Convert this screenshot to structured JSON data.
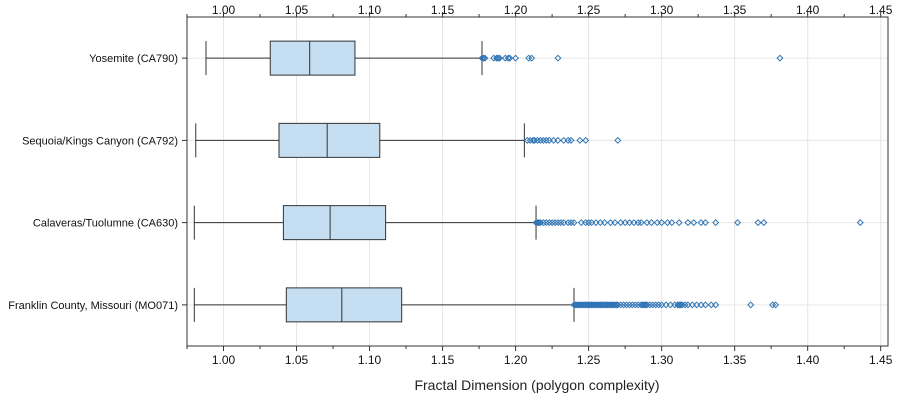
{
  "chart_data": {
    "type": "boxplot",
    "title": "",
    "xlabel": "Fractal Dimension (polygon complexity)",
    "ylabel": "",
    "xlim": [
      0.975,
      1.455
    ],
    "xticks": [
      1.0,
      1.05,
      1.1,
      1.15,
      1.2,
      1.25,
      1.3,
      1.35,
      1.4,
      1.45
    ],
    "xtick_labels": [
      "1.00",
      "1.05",
      "1.10",
      "1.15",
      "1.20",
      "1.25",
      "1.30",
      "1.35",
      "1.40",
      "1.45"
    ],
    "grid": true,
    "colors": {
      "box_fill": "#c6def1",
      "box_stroke": "#333333",
      "outlier": "#2f74b5",
      "grid": "#e6e6e6"
    },
    "categories": [
      {
        "label": "Yosemite (CA790)",
        "whisker_low": 0.988,
        "q1": 1.032,
        "median": 1.059,
        "q3": 1.09,
        "whisker_high": 1.177,
        "outliers": [
          1.177,
          1.178,
          1.179,
          1.185,
          1.187,
          1.188,
          1.189,
          1.193,
          1.195,
          1.196,
          1.2,
          1.209,
          1.211,
          1.229,
          1.381
        ]
      },
      {
        "label": "Sequoia/Kings Canyon (CA792)",
        "whisker_low": 0.981,
        "q1": 1.038,
        "median": 1.071,
        "q3": 1.107,
        "whisker_high": 1.206,
        "outliers": [
          1.208,
          1.21,
          1.212,
          1.213,
          1.215,
          1.217,
          1.219,
          1.221,
          1.223,
          1.226,
          1.229,
          1.233,
          1.236,
          1.238,
          1.244,
          1.248,
          1.27
        ]
      },
      {
        "label": "Calaveras/Tuolumne (CA630)",
        "whisker_low": 0.98,
        "q1": 1.041,
        "median": 1.073,
        "q3": 1.111,
        "whisker_high": 1.214,
        "outliers": [
          1.214,
          1.215,
          1.216,
          1.217,
          1.219,
          1.221,
          1.223,
          1.225,
          1.227,
          1.229,
          1.231,
          1.233,
          1.236,
          1.238,
          1.24,
          1.245,
          1.248,
          1.25,
          1.252,
          1.255,
          1.258,
          1.261,
          1.265,
          1.268,
          1.272,
          1.275,
          1.278,
          1.281,
          1.284,
          1.286,
          1.29,
          1.293,
          1.297,
          1.3,
          1.304,
          1.307,
          1.312,
          1.318,
          1.322,
          1.327,
          1.33,
          1.337,
          1.352,
          1.366,
          1.37,
          1.436
        ]
      },
      {
        "label": "Franklin County, Missouri (MO071)",
        "whisker_low": 0.98,
        "q1": 1.043,
        "median": 1.081,
        "q3": 1.122,
        "whisker_high": 1.24,
        "outliers": [
          1.24,
          1.241,
          1.242,
          1.243,
          1.244,
          1.245,
          1.246,
          1.247,
          1.248,
          1.249,
          1.25,
          1.251,
          1.252,
          1.253,
          1.254,
          1.255,
          1.256,
          1.257,
          1.258,
          1.259,
          1.26,
          1.261,
          1.262,
          1.263,
          1.264,
          1.265,
          1.266,
          1.267,
          1.268,
          1.269,
          1.27,
          1.272,
          1.274,
          1.276,
          1.278,
          1.28,
          1.282,
          1.284,
          1.286,
          1.287,
          1.288,
          1.289,
          1.29,
          1.292,
          1.294,
          1.296,
          1.298,
          1.3,
          1.303,
          1.306,
          1.309,
          1.311,
          1.312,
          1.313,
          1.314,
          1.316,
          1.318,
          1.321,
          1.324,
          1.327,
          1.33,
          1.334,
          1.337,
          1.361,
          1.376,
          1.378
        ]
      }
    ]
  }
}
